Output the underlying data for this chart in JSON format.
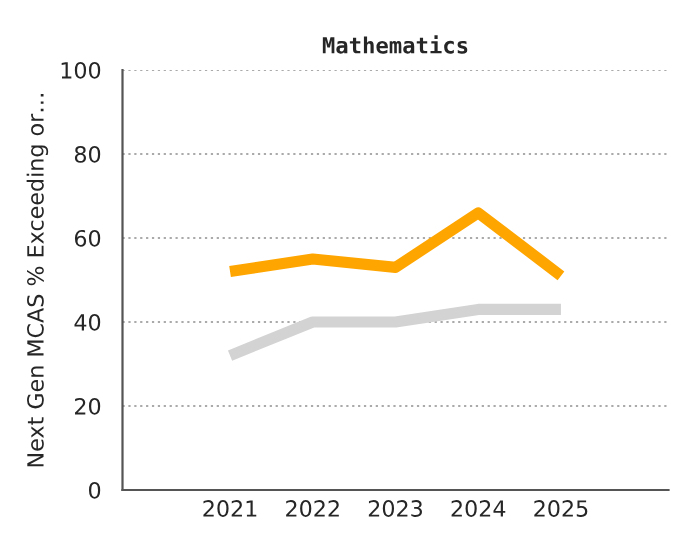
{
  "chart_data": {
    "type": "line",
    "title": "Mathematics",
    "ylabel": "Next Gen MCAS % Exceeding or…",
    "categories": [
      "2021",
      "2022",
      "2023",
      "2024",
      "2025"
    ],
    "series": [
      {
        "color": "#ffa500",
        "values": [
          52,
          55,
          53,
          66,
          51
        ]
      },
      {
        "color": "#d3d3d3",
        "values": [
          32,
          40,
          40,
          43,
          43
        ]
      }
    ],
    "ylim": [
      0,
      100
    ],
    "yticks": [
      0,
      20,
      40,
      60,
      80,
      100
    ],
    "grid": "y",
    "legend": false,
    "marker": "none",
    "line_style": "solid"
  }
}
